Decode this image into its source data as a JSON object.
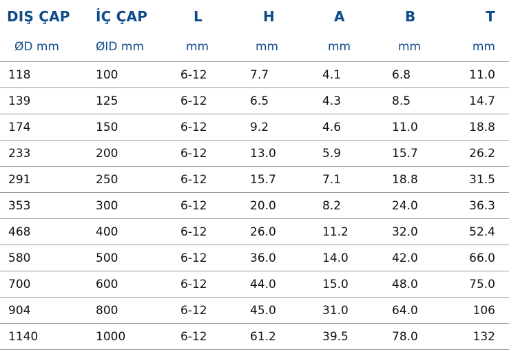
{
  "headers": [
    "DIŞ ÇAP",
    "İÇ ÇAP",
    "L",
    "H",
    "A",
    "B",
    "T"
  ],
  "units": [
    "ØD mm",
    "ØID mm",
    "mm",
    "mm",
    "mm",
    "mm",
    "mm"
  ],
  "rows": [
    [
      "118",
      "100",
      "6-12",
      "7.7",
      "4.1",
      "6.8",
      "11.0"
    ],
    [
      "139",
      "125",
      "6-12",
      "6.5",
      "4.3",
      "8.5",
      "14.7"
    ],
    [
      "174",
      "150",
      "6-12",
      "9.2",
      "4.6",
      "11.0",
      "18.8"
    ],
    [
      "233",
      "200",
      "6-12",
      "13.0",
      "5.9",
      "15.7",
      "26.2"
    ],
    [
      "291",
      "250",
      "6-12",
      "15.7",
      "7.1",
      "18.8",
      "31.5"
    ],
    [
      "353",
      "300",
      "6-12",
      "20.0",
      "8.2",
      "24.0",
      "36.3"
    ],
    [
      "468",
      "400",
      "6-12",
      "26.0",
      "11.2",
      "32.0",
      "52.4"
    ],
    [
      "580",
      "500",
      "6-12",
      "36.0",
      "14.0",
      "42.0",
      "66.0"
    ],
    [
      "700",
      "600",
      "6-12",
      "44.0",
      "15.0",
      "48.0",
      "75.0"
    ],
    [
      "904",
      "800",
      "6-12",
      "45.0",
      "31.0",
      "64.0",
      "106"
    ],
    [
      "1140",
      "1000",
      "6-12",
      "61.2",
      "39.5",
      "78.0",
      "132"
    ]
  ],
  "colors": {
    "header": "#0f4a8a",
    "rule": "#9a9a9a",
    "text": "#111111"
  }
}
